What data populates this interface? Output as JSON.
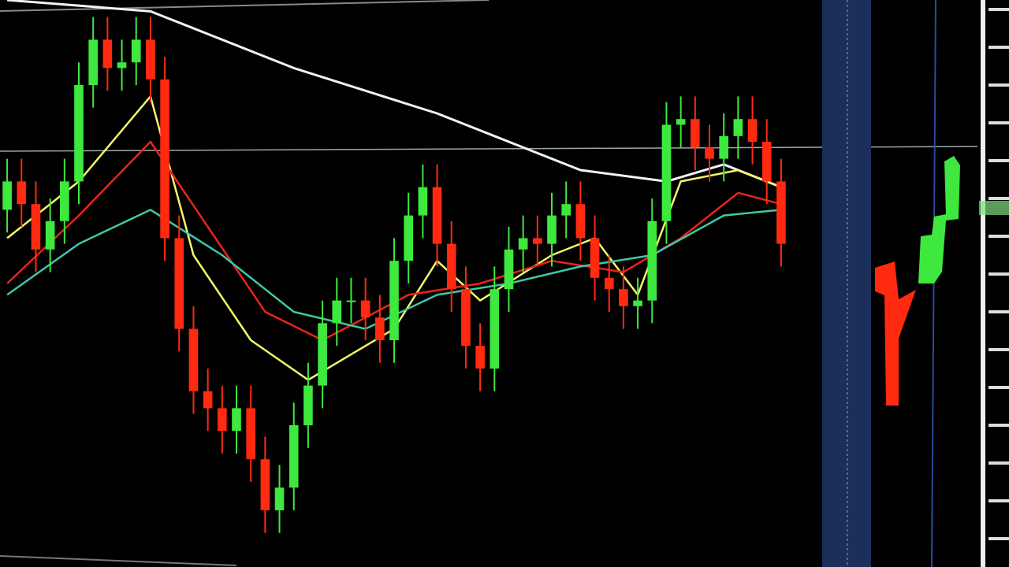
{
  "chart_data": {
    "type": "candlestick",
    "ylim": [
      0,
      100
    ],
    "up_color": "#3ee83e",
    "down_color": "#ff2a10",
    "categories": [
      null,
      null,
      null,
      null,
      null,
      null,
      null,
      null,
      null,
      null,
      null,
      null,
      null,
      null,
      null,
      null,
      null,
      null,
      null,
      null,
      null,
      null,
      null,
      null,
      null,
      null,
      null,
      null,
      null,
      null,
      null,
      null,
      null,
      null,
      null,
      null,
      null,
      null,
      null,
      null,
      null,
      null,
      null,
      null,
      null,
      null,
      null,
      null,
      null,
      null,
      null,
      null,
      null,
      null,
      null
    ],
    "open": [
      63,
      68,
      64,
      56,
      61,
      68,
      85,
      93,
      88,
      89,
      93,
      86,
      58,
      42,
      31,
      28,
      24,
      28,
      19,
      10,
      14,
      25,
      32,
      43,
      47,
      47,
      44,
      40,
      54,
      62,
      67,
      57,
      49,
      39,
      35,
      49,
      56,
      58,
      57,
      62,
      64,
      58,
      51,
      49,
      46,
      47,
      61,
      78,
      79,
      74,
      72,
      76,
      79,
      75,
      68
    ],
    "high": [
      72,
      72,
      68,
      65,
      72,
      89,
      97,
      97,
      93,
      97,
      97,
      90,
      62,
      46,
      35,
      32,
      32,
      32,
      23,
      18,
      29,
      36,
      47,
      51,
      51,
      51,
      48,
      58,
      66,
      71,
      71,
      61,
      53,
      43,
      53,
      60,
      62,
      62,
      66,
      68,
      68,
      62,
      55,
      53,
      51,
      65,
      82,
      83,
      83,
      78,
      80,
      83,
      83,
      79,
      72
    ],
    "low": [
      59,
      60,
      52,
      52,
      57,
      64,
      81,
      84,
      84,
      85,
      82,
      54,
      38,
      27,
      24,
      20,
      20,
      15,
      6,
      6,
      10,
      21,
      28,
      39,
      43,
      40,
      36,
      36,
      50,
      58,
      53,
      45,
      35,
      31,
      31,
      45,
      52,
      53,
      53,
      58,
      54,
      47,
      45,
      42,
      42,
      43,
      57,
      74,
      70,
      68,
      68,
      72,
      71,
      64,
      53
    ],
    "close": [
      68,
      64,
      56,
      61,
      68,
      85,
      93,
      88,
      89,
      93,
      86,
      58,
      42,
      31,
      28,
      24,
      28,
      19,
      10,
      14,
      25,
      32,
      43,
      47,
      47,
      44,
      40,
      54,
      62,
      67,
      57,
      49,
      39,
      35,
      49,
      56,
      58,
      57,
      62,
      64,
      58,
      51,
      49,
      46,
      47,
      61,
      78,
      79,
      74,
      72,
      76,
      79,
      75,
      68,
      57
    ],
    "lines": [
      {
        "color": "#f2f2f2",
        "x": [
          0,
          10,
          20,
          30,
          40,
          46,
          50,
          54
        ],
        "values": [
          100,
          98,
          88,
          80,
          70,
          68,
          71,
          67
        ]
      },
      {
        "color": "#f4f56a",
        "x": [
          0,
          5,
          10,
          13,
          17,
          21,
          27,
          30,
          33,
          38,
          41,
          44,
          47,
          51,
          54
        ],
        "values": [
          58,
          68,
          83,
          55,
          40,
          33,
          42,
          54,
          47,
          55,
          58,
          48,
          68,
          70,
          67
        ]
      },
      {
        "color": "#e8241a",
        "x": [
          0,
          5,
          10,
          14,
          18,
          22,
          28,
          33,
          38,
          43,
          47,
          51,
          54
        ],
        "values": [
          50,
          62,
          75,
          60,
          45,
          40,
          48,
          50,
          54,
          52,
          58,
          66,
          64
        ]
      },
      {
        "color": "#3fc7a8",
        "x": [
          0,
          5,
          10,
          15,
          20,
          25,
          30,
          35,
          40,
          45,
          50,
          54
        ],
        "values": [
          48,
          57,
          63,
          55,
          45,
          42,
          48,
          50,
          53,
          55,
          62,
          63
        ]
      }
    ]
  }
}
